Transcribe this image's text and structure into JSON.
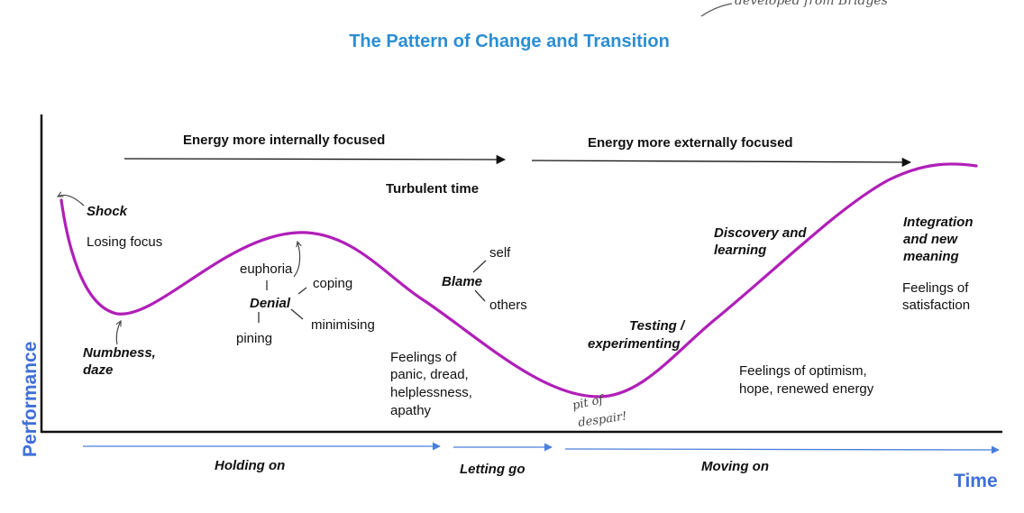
{
  "title": "The Pattern of Change and Transition",
  "energy": {
    "internal": "Energy more internally focused",
    "external": "Energy more externally focused"
  },
  "labels": {
    "turbulent": "Turbulent time",
    "shock": "Shock",
    "losing_focus": "Losing focus",
    "numbness_line1": "Numbness,",
    "numbness_line2": "daze",
    "euphoria": "euphoria",
    "denial": "Denial",
    "coping": "coping",
    "minimising": "minimising",
    "pining": "pining",
    "self": "self",
    "blame": "Blame",
    "others": "others",
    "feelings_panic": [
      "Feelings of",
      "panic, dread,",
      "helplessness,",
      "apathy"
    ],
    "testing_line1": "Testing /",
    "testing_line2": "experimenting",
    "discovery_line1": "Discovery and",
    "discovery_line2": "learning",
    "feelings_optimism": [
      "Feelings of optimism,",
      "hope, renewed energy"
    ],
    "integration": [
      "Integration",
      "and new",
      "meaning"
    ],
    "feelings_satisfaction": [
      "Feelings of",
      "satisfaction"
    ]
  },
  "handwritten": {
    "pit_line1": "pit of",
    "pit_line2": "despair!",
    "top_note": "developed from Bridges"
  },
  "phases": {
    "holding": "Holding on",
    "letting": "Letting go",
    "moving": "Moving on"
  },
  "axes": {
    "y": "Performance",
    "x": "Time"
  },
  "colors": {
    "curve": "#b01fb8",
    "title": "#2b8ed2",
    "axis_label": "#3f6fd8",
    "phase_arrow": "#4a7fdc",
    "text": "#111111"
  }
}
